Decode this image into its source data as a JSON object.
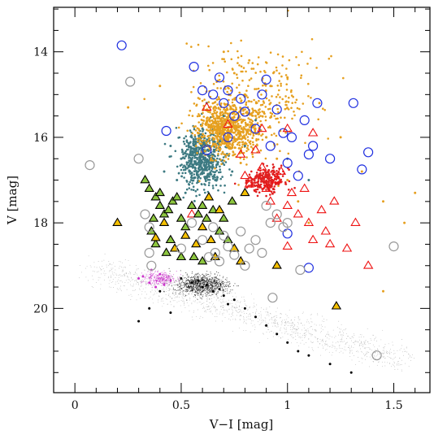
{
  "chart_data": {
    "type": "scatter",
    "xlabel": "V−I [mag]",
    "ylabel": "V [mag]",
    "xlim": [
      -0.1,
      1.67
    ],
    "ylim": [
      21.97,
      12.96
    ],
    "y_inverted": true,
    "x_ticks": [
      0,
      0.5,
      1,
      1.5
    ],
    "x_tick_labels": [
      "0",
      "0.5",
      "1",
      "1.5"
    ],
    "y_ticks": [
      14,
      16,
      18,
      20
    ],
    "y_tick_labels": [
      "14",
      "16",
      "18",
      "20"
    ],
    "grid": false,
    "legend": "none",
    "series": [
      {
        "marker": "dot",
        "color": "#000000",
        "points": [
          [
            0.55,
            19.4
          ],
          [
            0.6,
            19.5
          ],
          [
            0.5,
            19.3
          ],
          [
            0.65,
            19.6
          ],
          [
            0.7,
            19.7
          ],
          [
            0.58,
            19.35
          ],
          [
            0.62,
            19.45
          ],
          [
            0.68,
            19.55
          ],
          [
            0.75,
            19.8
          ],
          [
            0.8,
            20.0
          ],
          [
            0.85,
            20.2
          ],
          [
            0.9,
            20.4
          ],
          [
            0.95,
            20.6
          ],
          [
            1.0,
            20.8
          ],
          [
            1.05,
            21.0
          ],
          [
            1.1,
            21.1
          ],
          [
            1.2,
            21.3
          ],
          [
            1.3,
            21.5
          ],
          [
            0.4,
            19.6
          ],
          [
            0.35,
            20.0
          ],
          [
            0.3,
            20.3
          ],
          [
            0.45,
            20.1
          ],
          [
            0.72,
            19.9
          ]
        ]
      },
      {
        "marker": "dot",
        "color": "#cc33cc",
        "points": [
          [
            0.3,
            19.3
          ],
          [
            0.35,
            19.4
          ],
          [
            0.4,
            19.2
          ],
          [
            0.38,
            19.5
          ],
          [
            0.45,
            19.35
          ],
          [
            0.32,
            19.25
          ],
          [
            0.42,
            19.45
          ],
          [
            0.36,
            19.1
          ]
        ]
      },
      {
        "marker": "dot",
        "color": "#3d7a82",
        "points": [
          [
            0.45,
            16.2
          ],
          [
            0.5,
            16.5
          ],
          [
            0.55,
            16.0
          ],
          [
            0.6,
            15.8
          ],
          [
            0.48,
            17.0
          ],
          [
            0.52,
            17.3
          ],
          [
            0.58,
            16.8
          ],
          [
            0.42,
            16.8
          ],
          [
            0.65,
            16.4
          ],
          [
            0.7,
            15.5
          ],
          [
            0.62,
            15.2
          ],
          [
            0.56,
            17.6
          ],
          [
            0.46,
            17.5
          ],
          [
            0.66,
            17.0
          ],
          [
            0.74,
            16.8
          ],
          [
            0.8,
            16.2
          ],
          [
            0.85,
            15.6
          ],
          [
            0.9,
            16.0
          ],
          [
            1.0,
            16.5
          ],
          [
            1.1,
            17.0
          ]
        ]
      },
      {
        "marker": "dot",
        "color": "#e6a020",
        "points": [
          [
            0.7,
            14.0
          ],
          [
            0.75,
            14.5
          ],
          [
            0.8,
            15.0
          ],
          [
            0.85,
            15.5
          ],
          [
            0.9,
            16.0
          ],
          [
            0.95,
            16.5
          ],
          [
            1.0,
            17.0
          ],
          [
            1.05,
            17.5
          ],
          [
            1.1,
            18.0
          ],
          [
            0.65,
            15.5
          ],
          [
            0.6,
            16.0
          ],
          [
            0.68,
            15.8
          ],
          [
            0.72,
            16.2
          ],
          [
            0.78,
            16.6
          ],
          [
            0.82,
            14.2
          ],
          [
            0.92,
            14.8
          ],
          [
            1.0,
            14.6
          ],
          [
            1.15,
            15.2
          ],
          [
            1.25,
            16.0
          ],
          [
            1.35,
            16.8
          ],
          [
            1.45,
            17.5
          ],
          [
            1.55,
            18.0
          ],
          [
            1.6,
            17.3
          ],
          [
            0.4,
            14.8
          ],
          [
            0.25,
            15.3
          ],
          [
            1.45,
            19.6
          ]
        ]
      },
      {
        "marker": "circle",
        "color": "#1f2fe0",
        "fill": "none",
        "points": [
          [
            0.22,
            13.85
          ],
          [
            0.56,
            14.35
          ],
          [
            0.6,
            14.9
          ],
          [
            0.65,
            15.0
          ],
          [
            0.68,
            14.6
          ],
          [
            0.7,
            15.2
          ],
          [
            0.72,
            14.9
          ],
          [
            0.75,
            15.5
          ],
          [
            0.78,
            15.1
          ],
          [
            0.8,
            15.4
          ],
          [
            0.85,
            15.8
          ],
          [
            0.88,
            15.0
          ],
          [
            0.9,
            14.65
          ],
          [
            0.92,
            16.2
          ],
          [
            0.95,
            15.35
          ],
          [
            0.98,
            15.9
          ],
          [
            1.0,
            16.6
          ],
          [
            1.02,
            16.0
          ],
          [
            1.05,
            16.9
          ],
          [
            1.08,
            15.6
          ],
          [
            1.1,
            16.4
          ],
          [
            1.12,
            16.2
          ],
          [
            1.14,
            15.2
          ],
          [
            1.2,
            16.5
          ],
          [
            1.31,
            15.2
          ],
          [
            1.35,
            16.75
          ],
          [
            1.38,
            16.35
          ],
          [
            0.43,
            15.85
          ],
          [
            1.0,
            18.25
          ],
          [
            1.1,
            19.05
          ],
          [
            0.62,
            16.3
          ],
          [
            0.72,
            16.0
          ]
        ]
      },
      {
        "marker": "triangle",
        "color": "#ee1111",
        "fill": "none",
        "points": [
          [
            0.55,
            17.8
          ],
          [
            0.62,
            15.3
          ],
          [
            0.72,
            15.7
          ],
          [
            0.78,
            16.4
          ],
          [
            0.8,
            16.9
          ],
          [
            0.82,
            17.1
          ],
          [
            0.85,
            16.3
          ],
          [
            0.88,
            16.7
          ],
          [
            0.9,
            17.2
          ],
          [
            0.92,
            17.5
          ],
          [
            0.95,
            17.0
          ],
          [
            0.97,
            16.8
          ],
          [
            1.0,
            17.6
          ],
          [
            1.02,
            17.3
          ],
          [
            1.05,
            17.8
          ],
          [
            1.08,
            17.2
          ],
          [
            1.1,
            18.0
          ],
          [
            1.12,
            18.4
          ],
          [
            1.16,
            17.7
          ],
          [
            1.18,
            18.2
          ],
          [
            1.2,
            18.5
          ],
          [
            1.22,
            17.5
          ],
          [
            1.28,
            18.6
          ],
          [
            1.32,
            18.0
          ],
          [
            1.38,
            19.0
          ],
          [
            1.0,
            18.55
          ],
          [
            0.88,
            15.8
          ],
          [
            1.0,
            15.8
          ],
          [
            1.12,
            15.9
          ],
          [
            0.95,
            17.9
          ]
        ]
      },
      {
        "marker": "triangle",
        "color": "#000000",
        "fill": "#8dc63f",
        "points": [
          [
            0.35,
            17.2
          ],
          [
            0.38,
            17.4
          ],
          [
            0.4,
            17.6
          ],
          [
            0.37,
            17.9
          ],
          [
            0.36,
            18.2
          ],
          [
            0.38,
            18.5
          ],
          [
            0.4,
            17.3
          ],
          [
            0.42,
            17.8
          ],
          [
            0.44,
            17.7
          ],
          [
            0.46,
            17.5
          ],
          [
            0.48,
            17.4
          ],
          [
            0.5,
            17.9
          ],
          [
            0.52,
            18.1
          ],
          [
            0.45,
            18.4
          ],
          [
            0.43,
            18.7
          ],
          [
            0.55,
            17.6
          ],
          [
            0.58,
            17.8
          ],
          [
            0.6,
            17.6
          ],
          [
            0.62,
            17.9
          ],
          [
            0.65,
            17.7
          ],
          [
            0.68,
            18.2
          ],
          [
            0.7,
            17.9
          ],
          [
            0.72,
            18.4
          ],
          [
            0.5,
            18.8
          ],
          [
            0.56,
            18.8
          ],
          [
            0.6,
            18.9
          ],
          [
            0.74,
            17.5
          ],
          [
            0.33,
            17.0
          ]
        ]
      },
      {
        "marker": "triangle",
        "color": "#000000",
        "fill": "#f5c000",
        "points": [
          [
            0.2,
            18.0
          ],
          [
            0.38,
            18.35
          ],
          [
            0.47,
            18.6
          ],
          [
            0.52,
            18.3
          ],
          [
            0.57,
            18.5
          ],
          [
            0.6,
            18.1
          ],
          [
            0.64,
            18.4
          ],
          [
            0.66,
            18.8
          ],
          [
            0.68,
            17.7
          ],
          [
            0.75,
            18.6
          ],
          [
            0.78,
            18.9
          ],
          [
            0.8,
            17.3
          ],
          [
            0.95,
            19.0
          ],
          [
            1.23,
            19.95
          ],
          [
            0.42,
            18.0
          ],
          [
            0.63,
            17.4
          ]
        ]
      },
      {
        "marker": "circle",
        "color": "#999999",
        "fill": "none",
        "points": [
          [
            0.07,
            16.65
          ],
          [
            0.26,
            14.7
          ],
          [
            0.3,
            16.5
          ],
          [
            0.33,
            17.8
          ],
          [
            0.35,
            18.1
          ],
          [
            0.35,
            18.7
          ],
          [
            0.36,
            19.0
          ],
          [
            0.5,
            18.6
          ],
          [
            0.55,
            18.0
          ],
          [
            0.6,
            18.4
          ],
          [
            0.63,
            18.8
          ],
          [
            0.65,
            18.1
          ],
          [
            0.66,
            18.7
          ],
          [
            0.68,
            18.9
          ],
          [
            0.7,
            18.3
          ],
          [
            0.72,
            18.55
          ],
          [
            0.75,
            18.75
          ],
          [
            0.78,
            18.2
          ],
          [
            0.8,
            19.0
          ],
          [
            0.82,
            18.6
          ],
          [
            0.85,
            18.4
          ],
          [
            0.88,
            18.7
          ],
          [
            0.9,
            17.6
          ],
          [
            0.92,
            18.0
          ],
          [
            0.95,
            17.8
          ],
          [
            0.98,
            18.1
          ],
          [
            1.0,
            18.0
          ],
          [
            0.93,
            19.75
          ],
          [
            1.06,
            19.1
          ],
          [
            1.42,
            21.1
          ],
          [
            1.5,
            18.55
          ]
        ]
      }
    ]
  }
}
